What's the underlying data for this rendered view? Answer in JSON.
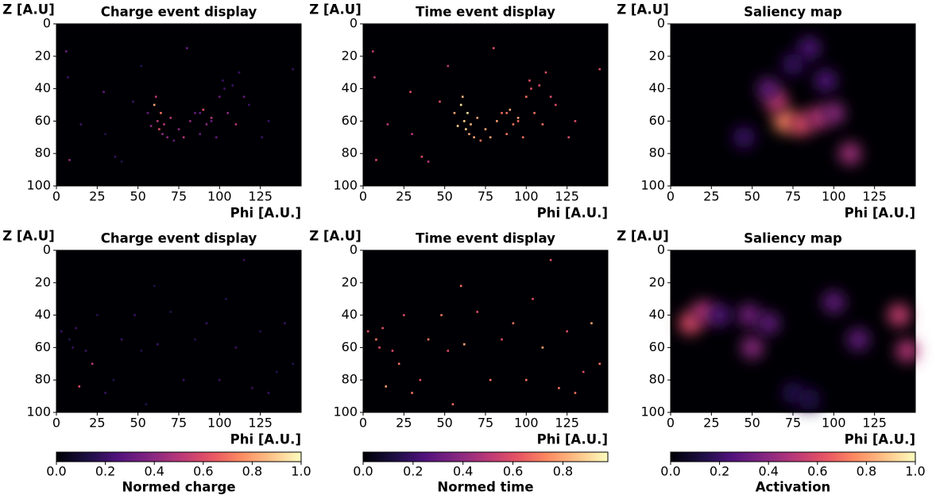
{
  "chart_data": [
    {
      "type": "heatmap",
      "title": "Charge event display",
      "xlabel": "Phi [A.U.]",
      "ylabel": "Z [A.U]",
      "xlim": [
        0,
        150
      ],
      "ylim": [
        0,
        100
      ],
      "invert_y": true,
      "xticks": [
        0,
        25,
        50,
        75,
        100,
        125
      ],
      "yticks": [
        0,
        20,
        40,
        60,
        80,
        100
      ],
      "x": [
        6,
        7,
        8,
        15,
        29,
        30,
        36,
        40,
        47,
        52,
        56,
        58,
        60,
        61,
        62,
        63,
        64,
        65,
        66,
        68,
        70,
        72,
        75,
        78,
        80,
        82,
        85,
        88,
        90,
        92,
        95,
        98,
        100,
        103,
        105,
        108,
        110,
        112,
        115,
        118,
        126,
        130,
        145,
        102,
        95,
        88
      ],
      "y": [
        17,
        33,
        84,
        62,
        42,
        68,
        82,
        85,
        48,
        26,
        55,
        63,
        50,
        45,
        60,
        65,
        55,
        68,
        62,
        70,
        58,
        72,
        65,
        70,
        15,
        60,
        55,
        68,
        53,
        62,
        58,
        70,
        45,
        40,
        55,
        38,
        62,
        30,
        45,
        50,
        70,
        60,
        28,
        35,
        60,
        55
      ],
      "values": [
        0.3,
        0.2,
        0.4,
        0.2,
        0.3,
        0.15,
        0.2,
        0.15,
        0.2,
        0.15,
        0.3,
        0.4,
        0.8,
        0.5,
        0.5,
        0.6,
        0.7,
        0.4,
        0.5,
        0.4,
        0.5,
        0.3,
        0.4,
        0.5,
        0.3,
        0.4,
        0.3,
        0.3,
        0.6,
        0.4,
        0.5,
        0.3,
        0.3,
        0.2,
        0.4,
        0.2,
        0.5,
        0.2,
        0.3,
        0.2,
        0.2,
        0.2,
        0.2,
        0.2,
        0.3,
        0.3
      ]
    },
    {
      "type": "heatmap",
      "title": "Time event display",
      "xlabel": "Phi [A.U.]",
      "ylabel": "Z [A.U]",
      "xlim": [
        0,
        150
      ],
      "ylim": [
        0,
        100
      ],
      "invert_y": true,
      "xticks": [
        0,
        25,
        50,
        75,
        100,
        125
      ],
      "yticks": [
        0,
        20,
        40,
        60,
        80,
        100
      ],
      "x": [
        6,
        7,
        8,
        15,
        29,
        30,
        36,
        40,
        47,
        52,
        56,
        58,
        60,
        61,
        62,
        63,
        64,
        65,
        66,
        68,
        70,
        72,
        75,
        78,
        80,
        82,
        85,
        88,
        90,
        92,
        95,
        98,
        100,
        103,
        105,
        108,
        110,
        112,
        115,
        118,
        126,
        130,
        145,
        102,
        95,
        88
      ],
      "y": [
        17,
        33,
        84,
        62,
        42,
        68,
        82,
        85,
        48,
        26,
        55,
        63,
        50,
        45,
        60,
        65,
        55,
        68,
        62,
        70,
        58,
        72,
        65,
        70,
        15,
        60,
        55,
        68,
        53,
        62,
        58,
        70,
        45,
        40,
        55,
        38,
        62,
        30,
        45,
        50,
        70,
        60,
        28,
        35,
        60,
        55
      ],
      "values": [
        0.5,
        0.5,
        0.6,
        0.5,
        0.6,
        0.5,
        0.6,
        0.5,
        0.6,
        0.5,
        0.8,
        0.9,
        0.95,
        0.85,
        0.9,
        0.9,
        0.95,
        0.8,
        0.85,
        0.8,
        0.8,
        0.7,
        0.8,
        0.8,
        0.6,
        0.8,
        0.7,
        0.7,
        0.8,
        0.7,
        0.8,
        0.7,
        0.7,
        0.6,
        0.7,
        0.6,
        0.7,
        0.6,
        0.6,
        0.6,
        0.6,
        0.6,
        0.6,
        0.6,
        0.7,
        0.7
      ]
    },
    {
      "type": "saliency",
      "title": "Saliency map",
      "xlabel": "Phi [A.U.]",
      "ylabel": "Z [A.U]",
      "xlim": [
        0,
        150
      ],
      "ylim": [
        0,
        100
      ],
      "invert_y": true,
      "xticks": [
        0,
        25,
        50,
        75,
        100,
        125
      ],
      "yticks": [
        0,
        20,
        40,
        60,
        80,
        100
      ],
      "x": [
        70,
        80,
        90,
        65,
        100,
        110,
        85,
        60,
        45,
        95,
        75
      ],
      "y": [
        60,
        62,
        58,
        48,
        55,
        80,
        15,
        40,
        70,
        35,
        25
      ],
      "values": [
        0.75,
        0.6,
        0.5,
        0.55,
        0.4,
        0.45,
        0.25,
        0.3,
        0.2,
        0.25,
        0.2
      ]
    },
    {
      "type": "heatmap",
      "title": "Charge event display",
      "xlabel": "Phi [A.U.]",
      "ylabel": "Z [A.U]",
      "xlim": [
        0,
        150
      ],
      "ylim": [
        0,
        100
      ],
      "invert_y": true,
      "xticks": [
        0,
        25,
        50,
        75,
        100,
        125
      ],
      "yticks": [
        0,
        20,
        40,
        60,
        80,
        100
      ],
      "x": [
        3,
        8,
        12,
        14,
        18,
        22,
        25,
        30,
        35,
        40,
        48,
        52,
        60,
        62,
        70,
        78,
        85,
        92,
        100,
        104,
        110,
        115,
        120,
        125,
        130,
        135,
        140,
        145,
        10,
        55
      ],
      "y": [
        50,
        55,
        48,
        84,
        62,
        70,
        40,
        88,
        80,
        55,
        40,
        62,
        22,
        58,
        38,
        80,
        55,
        45,
        80,
        30,
        60,
        6,
        85,
        50,
        88,
        75,
        45,
        70,
        60,
        95
      ],
      "values": [
        0.2,
        0.15,
        0.2,
        0.6,
        0.2,
        0.5,
        0.15,
        0.2,
        0.15,
        0.2,
        0.2,
        0.15,
        0.15,
        0.2,
        0.15,
        0.2,
        0.15,
        0.2,
        0.2,
        0.15,
        0.2,
        0.2,
        0.2,
        0.15,
        0.2,
        0.15,
        0.2,
        0.15,
        0.2,
        0.15
      ]
    },
    {
      "type": "heatmap",
      "title": "Time event display",
      "xlabel": "Phi [A.U.]",
      "ylabel": "Z [A.U]",
      "xlim": [
        0,
        150
      ],
      "ylim": [
        0,
        100
      ],
      "invert_y": true,
      "xticks": [
        0,
        25,
        50,
        75,
        100,
        125
      ],
      "yticks": [
        0,
        20,
        40,
        60,
        80,
        100
      ],
      "x": [
        3,
        8,
        12,
        14,
        18,
        22,
        25,
        30,
        35,
        40,
        48,
        52,
        60,
        62,
        70,
        78,
        85,
        92,
        100,
        104,
        110,
        115,
        120,
        125,
        130,
        135,
        140,
        145,
        10,
        55
      ],
      "y": [
        50,
        55,
        48,
        84,
        62,
        70,
        40,
        88,
        80,
        55,
        40,
        62,
        22,
        58,
        38,
        80,
        55,
        45,
        80,
        30,
        60,
        6,
        85,
        50,
        88,
        75,
        45,
        70,
        60,
        95
      ],
      "values": [
        0.6,
        0.7,
        0.6,
        0.8,
        0.6,
        0.7,
        0.6,
        0.7,
        0.6,
        0.7,
        0.7,
        0.6,
        0.7,
        0.8,
        0.6,
        0.7,
        0.6,
        0.7,
        0.7,
        0.6,
        0.8,
        0.6,
        0.7,
        0.6,
        0.7,
        0.6,
        0.8,
        0.7,
        0.6,
        0.7
      ]
    },
    {
      "type": "saliency",
      "title": "Saliency map",
      "xlabel": "Phi [A.U.]",
      "ylabel": "Z [A.U]",
      "xlim": [
        0,
        150
      ],
      "ylim": [
        0,
        100
      ],
      "invert_y": true,
      "xticks": [
        0,
        25,
        50,
        75,
        100,
        125
      ],
      "yticks": [
        0,
        20,
        40,
        60,
        80,
        100
      ],
      "x": [
        12,
        20,
        48,
        50,
        60,
        100,
        115,
        140,
        145,
        30,
        75,
        85
      ],
      "y": [
        45,
        38,
        40,
        60,
        45,
        32,
        55,
        40,
        62,
        40,
        88,
        92
      ],
      "values": [
        0.6,
        0.5,
        0.35,
        0.4,
        0.3,
        0.3,
        0.3,
        0.55,
        0.5,
        0.25,
        0.15,
        0.15
      ]
    }
  ],
  "colorbars": [
    {
      "label": "Normed charge",
      "colormap": "magma",
      "lim": [
        0,
        1
      ],
      "ticks": [
        {
          "value": 0,
          "label": "0.0"
        },
        {
          "value": 0.2,
          "label": "0.2"
        },
        {
          "value": 0.4,
          "label": "0.4"
        },
        {
          "value": 0.6,
          "label": "0.6"
        },
        {
          "value": 0.8,
          "label": "0.8"
        },
        {
          "value": 1,
          "label": "1.0"
        }
      ]
    },
    {
      "label": "Normed time",
      "colormap": "magma",
      "lim": [
        0,
        0.98
      ],
      "ticks": [
        {
          "value": 0,
          "label": "0.0"
        },
        {
          "value": 0.2,
          "label": "0.2"
        },
        {
          "value": 0.4,
          "label": "0.4"
        },
        {
          "value": 0.6,
          "label": "0.6"
        },
        {
          "value": 0.8,
          "label": "0.8"
        }
      ]
    },
    {
      "label": "Activation",
      "colormap": "magma",
      "lim": [
        0,
        1
      ],
      "ticks": [
        {
          "value": 0,
          "label": "0.0"
        },
        {
          "value": 0.2,
          "label": "0.2"
        },
        {
          "value": 0.4,
          "label": "0.4"
        },
        {
          "value": 0.6,
          "label": "0.6"
        },
        {
          "value": 0.8,
          "label": "0.8"
        },
        {
          "value": 1,
          "label": "1.0"
        }
      ]
    }
  ]
}
